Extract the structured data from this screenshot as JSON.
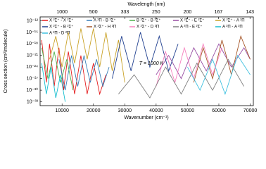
{
  "chart_data": {
    "type": "line",
    "xlabel": "Wavenumber (cm⁻¹)",
    "x2label": "Wavelength (nm)",
    "ylabel": "Cross section (cm²/molecule)",
    "annotation": "T = 1000 K",
    "log_y": true,
    "xlim": [
      3000,
      71000
    ],
    "ylim": [
      1e-34,
      1e-11
    ],
    "xticks": [
      10000,
      20000,
      30000,
      40000,
      50000,
      60000,
      70000
    ],
    "x2ticks": [
      1000,
      500,
      333,
      250,
      200,
      167,
      143
    ],
    "yticks": [
      {
        "value": 1e-12,
        "label": "10⁻¹²"
      },
      {
        "value": 1e-15,
        "label": "10⁻¹⁵"
      },
      {
        "value": 1e-18,
        "label": "10⁻¹⁸"
      },
      {
        "value": 1e-21,
        "label": "10⁻²¹"
      },
      {
        "value": 1e-24,
        "label": "10⁻²⁴"
      },
      {
        "value": 1e-27,
        "label": "10⁻²⁷"
      },
      {
        "value": 1e-30,
        "label": "10⁻³⁰"
      },
      {
        "value": 1e-33,
        "label": "10⁻³³"
      }
    ],
    "series": [
      {
        "name": "X ²Σ⁺ - X ²Σ⁺",
        "color": "#e41a1c",
        "x": [
          3500,
          5000,
          6000,
          7500,
          9000,
          10500,
          12000,
          14000,
          16000,
          18000,
          20000,
          22000,
          24000
        ],
        "values": [
          1e-17,
          1e-28,
          1e-18,
          1e-29,
          1e-19,
          1e-30,
          1e-20,
          1e-31,
          1e-21,
          1e-31,
          1e-23,
          1e-31,
          1e-26
        ]
      },
      {
        "name": "A ²Π - B ²Σ⁺",
        "color": "#377eb8",
        "x": [
          9000,
          11000,
          13000,
          15000,
          17000,
          19000,
          21000,
          23000,
          25000
        ],
        "values": [
          1e-22,
          1e-30,
          1e-21,
          1e-29,
          1e-21,
          1e-28,
          1e-22,
          1e-29,
          1e-24
        ]
      },
      {
        "name": "B ²Σ⁺ - B ²Σ⁺",
        "color": "#4daf4a",
        "x": [
          3500,
          5500,
          7500,
          9500,
          11500,
          13500
        ],
        "values": [
          1e-19,
          1e-27,
          1e-20,
          1e-28,
          1e-22,
          1e-30
        ]
      },
      {
        "name": "X ²Σ⁺ - E ²Σ⁺",
        "color": "#984ea3",
        "x": [
          40000,
          44000,
          48000,
          52000,
          56000,
          60000,
          64000,
          68000,
          70000
        ],
        "values": [
          1e-26,
          1e-21,
          1e-27,
          1e-19,
          1e-25,
          1e-18,
          1e-24,
          1e-19,
          1e-22
        ]
      },
      {
        "name": "X ²Σ⁺ - A ²Π",
        "color": "#c9a227",
        "x": [
          6000,
          8000,
          10000,
          12000,
          14000,
          16000,
          18000,
          20000,
          22000,
          24000,
          26000,
          28000,
          30000
        ],
        "values": [
          1e-22,
          1e-16,
          1e-24,
          1e-15,
          1e-23,
          1e-14,
          1e-22,
          1e-14,
          1e-24,
          1e-15,
          1e-25,
          1e-17,
          1e-28
        ]
      },
      {
        "name": "X ²Σ⁺ - B ²Σ⁺",
        "color": "#1f3f8f",
        "x": [
          26000,
          29000,
          32000,
          35000,
          38000,
          41000,
          44000,
          47000
        ],
        "values": [
          1e-27,
          1e-16,
          1e-25,
          1e-15,
          1e-24,
          1e-16,
          1e-25,
          1e-18
        ]
      },
      {
        "name": "X ²Σ⁺ - H ²Π",
        "color": "#a65628",
        "x": [
          52000,
          55000,
          58000,
          61000,
          64000,
          67000,
          70000
        ],
        "values": [
          1e-28,
          1e-19,
          1e-27,
          1e-17,
          1e-26,
          1e-16,
          1e-22
        ]
      },
      {
        "name": "X ²Σ⁺ - D ²Π",
        "color": "#f781bf",
        "x": [
          40000,
          43000,
          46000,
          49000,
          52000,
          55000,
          58000,
          61000
        ],
        "values": [
          1e-29,
          1e-20,
          1e-28,
          1e-19,
          1e-27,
          1e-18,
          1e-26,
          1e-19
        ]
      },
      {
        "name": "A ²Π - E ²Σ⁺",
        "color": "#808080",
        "x": [
          28000,
          33000,
          38000,
          43000,
          48000,
          53000,
          58000,
          63000,
          68000
        ],
        "values": [
          1e-31,
          1e-26,
          1e-32,
          1e-24,
          1e-31,
          1e-23,
          1e-30,
          1e-22,
          1e-29
        ]
      },
      {
        "name": "A ²Π - A ²Π",
        "color": "#17becf",
        "x": [
          3500,
          5000,
          6500,
          8000,
          9500,
          11000
        ],
        "values": [
          1e-23,
          1e-31,
          1e-24,
          1e-32,
          1e-26,
          1e-33
        ]
      },
      {
        "name": "A ²Π - D ²Π",
        "color": "#3fc1e0",
        "x": [
          50000,
          54000,
          58000,
          62000,
          66000,
          70000
        ],
        "values": [
          1e-24,
          1e-30,
          1e-22,
          1e-31,
          1e-21,
          1e-26
        ]
      }
    ]
  }
}
